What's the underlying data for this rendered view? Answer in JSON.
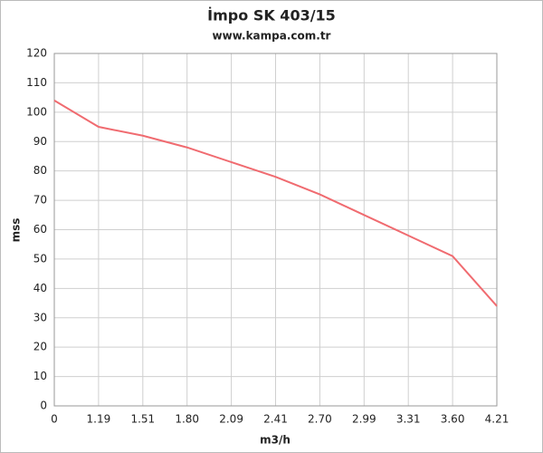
{
  "chart_data": {
    "type": "line",
    "title": "İmpo SK 403/15",
    "subtitle": "www.kampa.com.tr",
    "x_label": "m3/h",
    "y_label": "mss",
    "categories": [
      "0",
      "1.19",
      "1.51",
      "1.80",
      "2.09",
      "2.41",
      "2.70",
      "2.99",
      "3.31",
      "3.60",
      "4.21"
    ],
    "values": [
      104,
      95,
      92,
      88,
      83,
      78,
      72,
      65,
      58,
      51,
      34
    ],
    "color": "#f06b70",
    "ylim": [
      0,
      120
    ],
    "yticks": [
      0,
      10,
      20,
      30,
      40,
      50,
      60,
      70,
      80,
      90,
      100,
      110,
      120
    ],
    "grid": true
  }
}
